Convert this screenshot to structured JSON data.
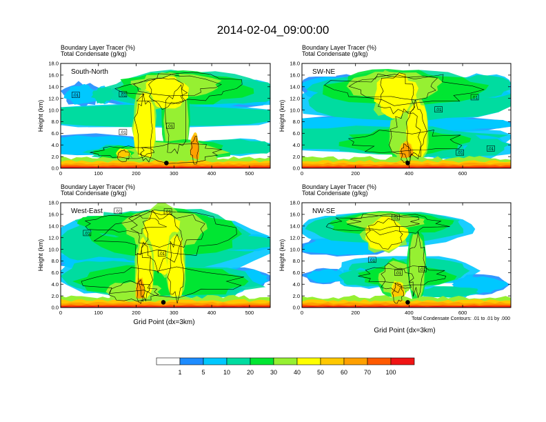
{
  "title": "2014-02-04_09:00:00",
  "colors": {
    "levels": [
      "#ffffff",
      "#1e8cff",
      "#00c8ff",
      "#00dca0",
      "#00e632",
      "#96f032",
      "#ffff00",
      "#ffc800",
      "#ffa000",
      "#ff5a00",
      "#f01414"
    ],
    "contour": "#000000",
    "frame": "#000000"
  },
  "legend": {
    "labels": [
      "1",
      "5",
      "10",
      "20",
      "30",
      "40",
      "50",
      "60",
      "70",
      "100"
    ]
  },
  "note": "Total Condensate Contours: .01 to .01 by .000",
  "xaxis_label": "Grid Point (dx=3km)",
  "chart_data": [
    {
      "type": "heatmap",
      "name": "South-North",
      "title_lines": [
        "Boundary Layer Tracer   (%)",
        "Total Condensate   (g/kg)"
      ],
      "ylabel": "Height (km)",
      "xlim": [
        0,
        555
      ],
      "ylim": [
        0,
        18
      ],
      "xticks": [
        0,
        100,
        200,
        300,
        400,
        500
      ],
      "yticks": [
        0,
        2,
        4,
        6,
        8,
        10,
        12,
        14,
        16,
        18
      ],
      "ytick_labels": [
        "0.0",
        "2.0",
        "4.0",
        "6.0",
        "8.0",
        "10.0",
        "12.0",
        "14.0",
        "16.0",
        "18.0"
      ],
      "marker_x": 280,
      "contour_labels": [
        {
          "x": 40,
          "y": 12.6,
          "text": ".01"
        },
        {
          "x": 165,
          "y": 12.7,
          "text": ".01"
        },
        {
          "x": 165,
          "y": 6.2,
          "text": ".01"
        },
        {
          "x": 290,
          "y": 7.3,
          "text": ".01"
        }
      ]
    },
    {
      "type": "heatmap",
      "name": "SW-NE",
      "title_lines": [
        "Boundary Layer Tracer   (%)",
        "Total Condensate   (g/kg)"
      ],
      "ylabel": "Height (km)",
      "xlim": [
        0,
        780
      ],
      "ylim": [
        0,
        18
      ],
      "xticks": [
        0,
        200,
        400,
        600
      ],
      "yticks": [
        0,
        2,
        4,
        6,
        8,
        10,
        12,
        14,
        16,
        18
      ],
      "ytick_labels": [
        "0.0",
        "2.0",
        "4.0",
        "6.0",
        "8.0",
        "10.0",
        "12.0",
        "14.0",
        "16.0",
        "18.0"
      ],
      "marker_x": 395,
      "contour_labels": [
        {
          "x": 645,
          "y": 12.2,
          "text": ".01"
        },
        {
          "x": 510,
          "y": 10.1,
          "text": ".01"
        },
        {
          "x": 590,
          "y": 2.7,
          "text": ".01"
        },
        {
          "x": 705,
          "y": 3.4,
          "text": ".01"
        }
      ]
    },
    {
      "type": "heatmap",
      "name": "West-East",
      "title_lines": [
        "Boundary Layer Tracer   (%)",
        "Total Condensate   (g/kg)"
      ],
      "ylabel": "Height (km)",
      "xlim": [
        0,
        555
      ],
      "ylim": [
        0,
        18
      ],
      "xticks": [
        0,
        100,
        200,
        300,
        400,
        500
      ],
      "yticks": [
        0,
        2,
        4,
        6,
        8,
        10,
        12,
        14,
        16,
        18
      ],
      "ytick_labels": [
        "0.0",
        "2.0",
        "4.0",
        "6.0",
        "8.0",
        "10.0",
        "12.0",
        "14.0",
        "16.0",
        "18.0"
      ],
      "marker_x": 272,
      "contour_labels": [
        {
          "x": 152,
          "y": 16.6,
          "text": ".01"
        },
        {
          "x": 284,
          "y": 16.5,
          "text": ".01"
        },
        {
          "x": 70,
          "y": 12.8,
          "text": ".01"
        },
        {
          "x": 268,
          "y": 9.3,
          "text": ".01"
        }
      ]
    },
    {
      "type": "heatmap",
      "name": "NW-SE",
      "title_lines": [
        "Boundary Layer Tracer   (%)",
        "Total Condensate   (g/kg)"
      ],
      "ylabel": "Height (km)",
      "xlim": [
        0,
        780
      ],
      "ylim": [
        0,
        18
      ],
      "xticks": [
        0,
        200,
        400,
        600
      ],
      "yticks": [
        0,
        2,
        4,
        6,
        8,
        10,
        12,
        14,
        16,
        18
      ],
      "ytick_labels": [
        "0.0",
        "2.0",
        "4.0",
        "6.0",
        "8.0",
        "10.0",
        "12.0",
        "14.0",
        "16.0",
        "18.0"
      ],
      "marker_x": 395,
      "contour_labels": [
        {
          "x": 350,
          "y": 15.5,
          "text": ".01"
        },
        {
          "x": 262,
          "y": 8.2,
          "text": ".01"
        },
        {
          "x": 360,
          "y": 6.0,
          "text": ".01"
        },
        {
          "x": 450,
          "y": 6.6,
          "text": ".01"
        }
      ]
    }
  ]
}
